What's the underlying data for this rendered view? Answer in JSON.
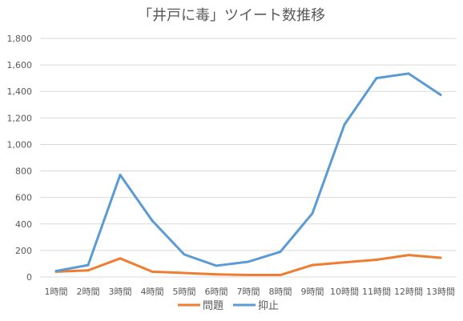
{
  "chart_data": {
    "type": "line",
    "title": "「井戸に毒」ツイート数推移",
    "categories": [
      "1時間",
      "2時間",
      "3時間",
      "4時間",
      "5時間",
      "6時間",
      "7時間",
      "8時間",
      "9時間",
      "10時間",
      "11時間",
      "12時間",
      "13時間"
    ],
    "series": [
      {
        "name": "問題",
        "color": "#ED7D31",
        "values": [
          40,
          50,
          140,
          40,
          30,
          20,
          15,
          15,
          90,
          110,
          130,
          165,
          145
        ]
      },
      {
        "name": "抑止",
        "color": "#5B9BD5",
        "values": [
          45,
          90,
          770,
          425,
          170,
          85,
          115,
          190,
          480,
          1150,
          1500,
          1535,
          1375
        ]
      }
    ],
    "ylim": [
      0,
      1800
    ],
    "yticks": [
      "0",
      "200",
      "400",
      "600",
      "800",
      "1,000",
      "1,200",
      "1,400",
      "1,600",
      "1,800"
    ],
    "grid": true,
    "legend_position": "bottom"
  }
}
